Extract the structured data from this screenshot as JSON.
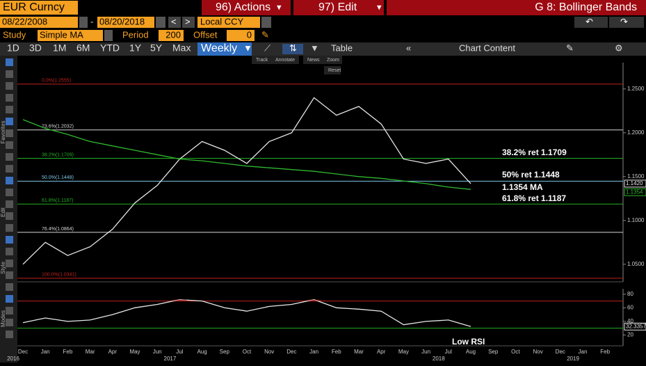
{
  "header": {
    "ticker": "EUR Curncy",
    "start_date": "08/22/2008",
    "dash": "-",
    "end_date": "08/20/2018",
    "currency": "Local CCY",
    "actions": "96) Actions",
    "edit": "97) Edit",
    "title": "G 8: Bollinger Bands"
  },
  "study": {
    "label": "Study",
    "value": "Simple MA",
    "period_label": "Period",
    "period": 200,
    "offset_label": "Offset",
    "offset": 0
  },
  "toolbar": {
    "ranges": [
      "1D",
      "3D",
      "1M",
      "6M",
      "YTD",
      "1Y",
      "5Y",
      "Max"
    ],
    "frequency": "Weekly",
    "table": "Table",
    "chart_content": "Chart Content"
  },
  "chart_tools": [
    "Track",
    "Annotate",
    "News",
    "Zoom",
    "Reset"
  ],
  "side_labels": [
    "Favorites",
    "Edit",
    "Style",
    "Modes"
  ],
  "chart_data": [
    {
      "type": "line",
      "categories": [
        "Dec",
        "Jan",
        "Feb",
        "Mar",
        "Apr",
        "May",
        "Jun",
        "Jul",
        "Aug",
        "Sep",
        "Oct",
        "Nov",
        "Dec",
        "Jan",
        "Feb",
        "Mar",
        "Apr",
        "May",
        "Jun",
        "Jul",
        "Aug",
        "Sep",
        "Oct",
        "Nov",
        "Dec",
        "Jan",
        "Feb"
      ],
      "years": [
        "2016",
        null,
        null,
        null,
        null,
        null,
        null,
        "2017",
        null,
        null,
        null,
        null,
        null,
        null,
        null,
        null,
        null,
        null,
        null,
        "2018",
        null,
        null,
        null,
        null,
        null,
        "2019",
        null
      ],
      "series": [
        {
          "color": "#e8e8e8",
          "values": [
            1.05,
            1.075,
            1.06,
            1.07,
            1.09,
            1.12,
            1.14,
            1.17,
            1.19,
            1.18,
            1.165,
            1.19,
            1.2,
            1.24,
            1.22,
            1.23,
            1.21,
            1.17,
            1.165,
            1.17,
            1.142,
            null,
            null,
            null,
            null,
            null,
            null
          ]
        },
        {
          "color": "#2fb82f",
          "values": [
            1.215,
            1.205,
            1.198,
            1.19,
            1.185,
            1.18,
            1.175,
            1.17,
            1.168,
            1.165,
            1.162,
            1.16,
            1.158,
            1.156,
            1.153,
            1.15,
            1.148,
            1.145,
            1.142,
            1.138,
            1.1354,
            null,
            null,
            null,
            null,
            null,
            null
          ]
        }
      ],
      "ylim": [
        1.03,
        1.28
      ],
      "yticks": [
        {
          "value": 1.05,
          "label": "1.0500"
        },
        {
          "value": 1.1,
          "label": "1.1000"
        },
        {
          "value": 1.15,
          "label": "1.1500"
        },
        {
          "value": 1.2,
          "label": "1.2000"
        },
        {
          "value": 1.25,
          "label": "1.2500"
        }
      ],
      "levels": [
        {
          "value": 1.2555,
          "label": "0.0%(1.2555)",
          "color": "#c02020"
        },
        {
          "value": 1.2032,
          "label": "23.6%(1.2032)",
          "color": "#d8d8d8"
        },
        {
          "value": 1.1709,
          "label": "38.2%(1.1709)",
          "color": "#22b022"
        },
        {
          "value": 1.1448,
          "label": "50.0%(1.1448)",
          "color": "#7fc8e8"
        },
        {
          "value": 1.1187,
          "label": "61.8%(1.1187)",
          "color": "#22b022"
        },
        {
          "value": 1.0864,
          "label": "76.4%(1.0864)",
          "color": "#d8d8d8"
        },
        {
          "value": 1.0341,
          "label": "100.0%(1.0341)",
          "color": "#c02020"
        }
      ],
      "annotations": [
        "38.2% ret 1.1709",
        "50% ret 1.1448",
        "1.1354 MA",
        "61.8% ret 1.1187"
      ],
      "last_labels": [
        {
          "value": 1.142,
          "label": "1.1420",
          "color": "#e8e8e8"
        },
        {
          "value": 1.1354,
          "label": "1.1354",
          "color": "#2fb82f"
        }
      ]
    },
    {
      "type": "line",
      "values": [
        38,
        45,
        40,
        42,
        50,
        60,
        65,
        72,
        70,
        60,
        55,
        62,
        65,
        72,
        60,
        58,
        55,
        35,
        40,
        42,
        32.3357,
        null,
        null,
        null,
        null,
        null,
        null
      ],
      "color": "#e8e8e8",
      "ylim": [
        4,
        88
      ],
      "yticks": [
        20,
        40,
        60,
        80
      ],
      "levels": [
        {
          "value": 70,
          "color": "#c02020"
        },
        {
          "value": 30,
          "color": "#22b022"
        }
      ],
      "annotations": [
        "Low RSI"
      ],
      "last_labels": [
        {
          "value": 32.3357,
          "label": "32.3357",
          "color": "#e8e8e8"
        }
      ]
    }
  ]
}
